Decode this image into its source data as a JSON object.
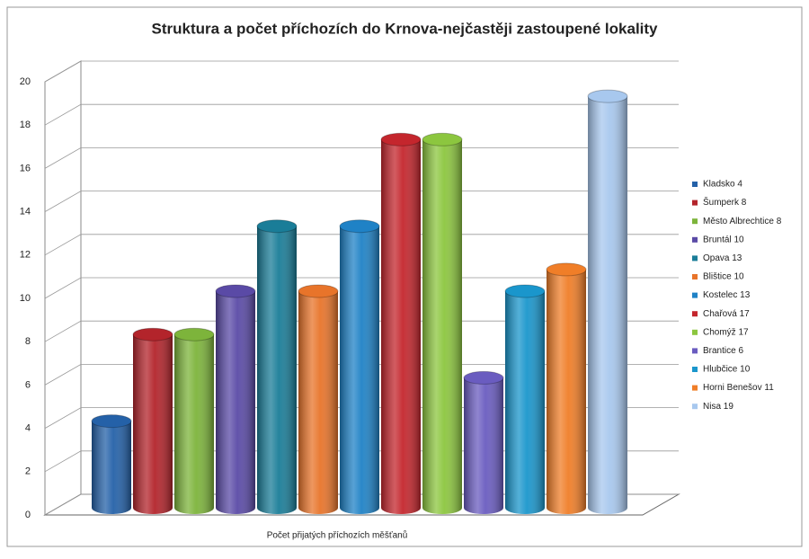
{
  "chart_data": {
    "type": "bar",
    "title": "Struktura a počet příchozích do Krnova-nejčastěji zastoupené lokality",
    "categories": [
      "Počet přijatých příchozích měšťanů"
    ],
    "series": [
      {
        "name": "Kladsko 4",
        "color": "#2461a8",
        "values": [
          4
        ]
      },
      {
        "name": "Šumperk 8",
        "color": "#b3242b",
        "values": [
          8
        ]
      },
      {
        "name": "Město Albrechtice 8",
        "color": "#7db43b",
        "values": [
          8
        ]
      },
      {
        "name": "Bruntál 10",
        "color": "#5a4aa6",
        "values": [
          10
        ]
      },
      {
        "name": "Opava 13",
        "color": "#1a7d98",
        "values": [
          13
        ]
      },
      {
        "name": "Blištice 10",
        "color": "#e8742a",
        "values": [
          10
        ]
      },
      {
        "name": "Kostelec 13",
        "color": "#1f82c6",
        "values": [
          13
        ]
      },
      {
        "name": "Chařová 17",
        "color": "#c4262d",
        "values": [
          17
        ]
      },
      {
        "name": "Chomýž 17",
        "color": "#8cc63f",
        "values": [
          17
        ]
      },
      {
        "name": "Brantice 6",
        "color": "#6a5cc0",
        "values": [
          6
        ]
      },
      {
        "name": "Hlubčice 10",
        "color": "#1a96cc",
        "values": [
          10
        ]
      },
      {
        "name": "Horni Benešov 11",
        "color": "#f07e28",
        "values": [
          11
        ]
      },
      {
        "name": "Nisa 19",
        "color": "#a8c8ee",
        "values": [
          19
        ]
      }
    ],
    "ylim": [
      0,
      20
    ],
    "yticks": [
      0,
      2,
      4,
      6,
      8,
      10,
      12,
      14,
      16,
      18,
      20
    ],
    "grid": true,
    "legend": "right"
  }
}
